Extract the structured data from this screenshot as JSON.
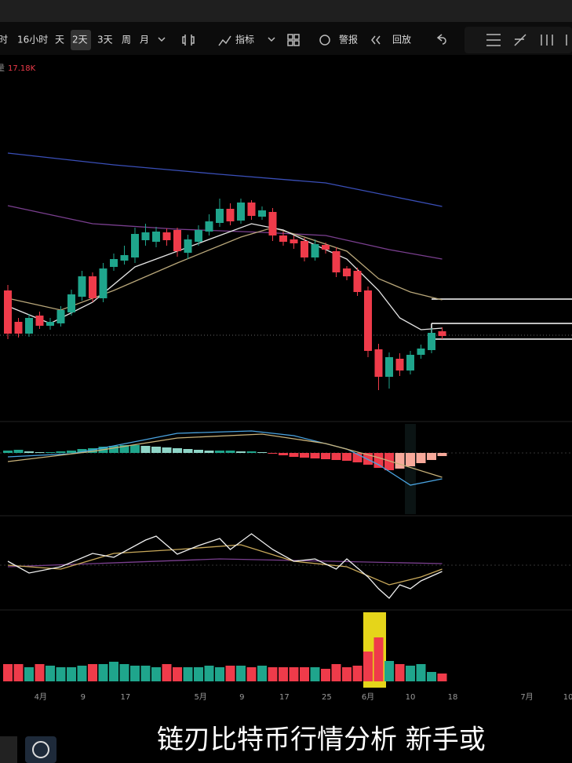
{
  "toolbar": {
    "items": [
      "时",
      "16小时",
      "天",
      "2天",
      "3天",
      "周",
      "月",
      "指标",
      "警报",
      "回放"
    ]
  },
  "volume_legend": {
    "name": "量",
    "value": "17.18K"
  },
  "caption": "链刃比特币行情分析 新手或",
  "chart_data": [
    {
      "type": "candlestick",
      "up_color": "#1fa58c",
      "down_color": "#ef3b4a",
      "ylim": [
        0,
        460
      ],
      "candles": [
        [
          165,
          172,
          103,
          110
        ],
        [
          125,
          130,
          105,
          110
        ],
        [
          110,
          135,
          106,
          130
        ],
        [
          133,
          138,
          116,
          120
        ],
        [
          120,
          130,
          115,
          125
        ],
        [
          123,
          145,
          119,
          140
        ],
        [
          137,
          166,
          133,
          160
        ],
        [
          157,
          190,
          152,
          183
        ],
        [
          183,
          188,
          150,
          155
        ],
        [
          155,
          200,
          150,
          193
        ],
        [
          195,
          212,
          190,
          205
        ],
        [
          203,
          222,
          198,
          210
        ],
        [
          207,
          245,
          200,
          237
        ],
        [
          229,
          250,
          222,
          239
        ],
        [
          227,
          246,
          220,
          240
        ],
        [
          239,
          244,
          222,
          229
        ],
        [
          242,
          245,
          208,
          215
        ],
        [
          213,
          236,
          205,
          230
        ],
        [
          227,
          248,
          222,
          242
        ],
        [
          240,
          262,
          235,
          253
        ],
        [
          251,
          282,
          246,
          269
        ],
        [
          269,
          276,
          248,
          253
        ],
        [
          254,
          282,
          250,
          277
        ],
        [
          277,
          280,
          255,
          260
        ],
        [
          259,
          272,
          255,
          267
        ],
        [
          265,
          270,
          228,
          235
        ],
        [
          235,
          240,
          222,
          227
        ],
        [
          230,
          235,
          218,
          225
        ],
        [
          228,
          232,
          202,
          207
        ],
        [
          207,
          230,
          203,
          224
        ],
        [
          223,
          226,
          212,
          217
        ],
        [
          215,
          220,
          182,
          188
        ],
        [
          193,
          196,
          178,
          183
        ],
        [
          190,
          194,
          158,
          163
        ],
        [
          165,
          170,
          80,
          88
        ],
        [
          90,
          97,
          38,
          55
        ],
        [
          55,
          86,
          40,
          80
        ],
        [
          78,
          85,
          56,
          63
        ],
        [
          63,
          88,
          58,
          83
        ],
        [
          83,
          96,
          78,
          91
        ],
        [
          89,
          117,
          85,
          111
        ],
        [
          113,
          118,
          103,
          107
        ]
      ],
      "lines": [
        {
          "color": "#3a4fb8",
          "x": [
            0,
            10,
            20,
            30,
            41
          ],
          "values": [
            340,
            325,
            313,
            302,
            272
          ]
        },
        {
          "color": "#7a3f8f",
          "x": [
            0,
            8,
            16,
            24,
            30,
            36,
            41
          ],
          "values": [
            273,
            250,
            243,
            239,
            235,
            217,
            205
          ]
        },
        {
          "color": "#b9a77a",
          "x": [
            0,
            5,
            10,
            16,
            22,
            25,
            28,
            32,
            35,
            38,
            41
          ],
          "values": [
            155,
            140,
            165,
            200,
            233,
            245,
            233,
            215,
            180,
            163,
            153
          ]
        },
        {
          "color": "#e6e6e6",
          "x": [
            0,
            4,
            8,
            12,
            16,
            20,
            23,
            26,
            29,
            32,
            35,
            37,
            39,
            41
          ],
          "values": [
            145,
            123,
            150,
            195,
            215,
            235,
            250,
            242,
            223,
            205,
            165,
            130,
            115,
            117
          ]
        }
      ]
    },
    {
      "type": "macd",
      "ylim": [
        -78,
        37
      ],
      "histogram": [
        3,
        4,
        2,
        1,
        1,
        2,
        3,
        5,
        6,
        8,
        9,
        10,
        10,
        9,
        8,
        7,
        6,
        5,
        4,
        3,
        3,
        3,
        2,
        2,
        1,
        -1,
        -3,
        -5,
        -6,
        -7,
        -8,
        -9,
        -10,
        -12,
        -15,
        -19,
        -22,
        -20,
        -17,
        -13,
        -9,
        -4
      ],
      "lines": [
        {
          "color": "#4aa3e0",
          "x": [
            0,
            6,
            10,
            16,
            23,
            27,
            32,
            35,
            38,
            41
          ],
          "values": [
            -5,
            -1,
            9,
            25,
            28,
            22,
            5,
            -15,
            -41,
            -33
          ]
        },
        {
          "color": "#c9b27a",
          "x": [
            0,
            8,
            16,
            24,
            30,
            35,
            41
          ],
          "values": [
            -11,
            2,
            19,
            24,
            12,
            -6,
            -31
          ]
        }
      ]
    },
    {
      "type": "line",
      "ylim": [
        0,
        115
      ],
      "lines": [
        {
          "color": "#7a3f8f",
          "x": [
            0,
            20,
            41
          ],
          "values": [
            53,
            63,
            57
          ]
        },
        {
          "color": "#c9a95a",
          "x": [
            0,
            5,
            10,
            16,
            22,
            27,
            32,
            36,
            39,
            41
          ],
          "values": [
            55,
            50,
            70,
            75,
            81,
            60,
            53,
            30,
            40,
            50
          ]
        },
        {
          "color": "#f0f0f0",
          "x": [
            0,
            2,
            5,
            8,
            10,
            13,
            14,
            16,
            18,
            20,
            21,
            23,
            25,
            27,
            29,
            31,
            32,
            34,
            35,
            36,
            37,
            38,
            39,
            41
          ],
          "values": [
            60,
            45,
            53,
            70,
            65,
            87,
            92,
            69,
            80,
            89,
            75,
            95,
            75,
            60,
            63,
            50,
            63,
            40,
            25,
            13,
            30,
            25,
            35,
            47
          ]
        }
      ]
    },
    {
      "type": "volume",
      "ylim": [
        0,
        88
      ],
      "values": [
        22,
        22,
        18,
        22,
        20,
        18,
        18,
        20,
        22,
        22,
        25,
        22,
        20,
        20,
        18,
        22,
        18,
        18,
        18,
        20,
        18,
        20,
        20,
        18,
        20,
        18,
        18,
        18,
        18,
        18,
        16,
        22,
        18,
        20,
        38,
        56,
        26,
        22,
        20,
        22,
        12,
        10
      ],
      "xticks": [
        {
          "value": 3.1,
          "label": "4月"
        },
        {
          "value": 7.1,
          "label": "9"
        },
        {
          "value": 11.1,
          "label": "17"
        },
        {
          "value": 18.2,
          "label": "5月"
        },
        {
          "value": 22.1,
          "label": "9"
        },
        {
          "value": 26.1,
          "label": "17"
        },
        {
          "value": 30.1,
          "label": "25"
        },
        {
          "value": 34,
          "label": "6月"
        },
        {
          "value": 38,
          "label": "10"
        },
        {
          "value": 42,
          "label": "18"
        },
        {
          "value": 49,
          "label": "7月"
        },
        {
          "value": 52.9,
          "label": "10"
        }
      ]
    }
  ]
}
